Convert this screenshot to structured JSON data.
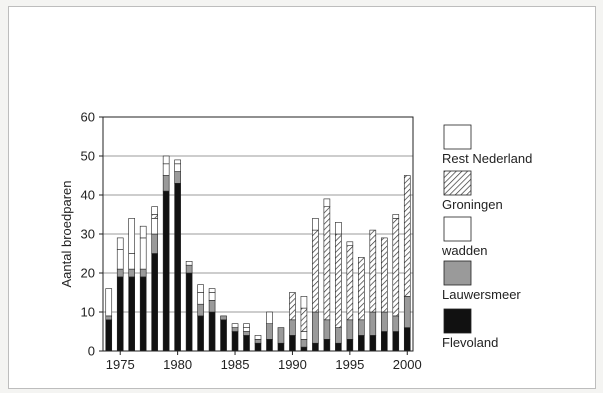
{
  "chart_data": {
    "type": "bar",
    "stacked": true,
    "title": "",
    "xlabel": "",
    "ylabel": "Aantal broedparen",
    "xlim": [
      1975,
      2000
    ],
    "ylim": [
      0,
      60
    ],
    "yticks": [
      0,
      10,
      20,
      30,
      40,
      50,
      60
    ],
    "xticks": [
      1975,
      1980,
      1985,
      1990,
      1995,
      2000
    ],
    "grid": "horizontal",
    "legend_position": "right",
    "years": [
      1974,
      1975,
      1976,
      1977,
      1978,
      1979,
      1980,
      1981,
      1982,
      1983,
      1984,
      1985,
      1986,
      1987,
      1988,
      1989,
      1990,
      1991,
      1992,
      1993,
      1994,
      1995,
      1996,
      1997,
      1998,
      1999,
      2000
    ],
    "series": [
      {
        "name": "Flevoland",
        "pattern": "black",
        "values": [
          8,
          19,
          19,
          19,
          25,
          41,
          43,
          20,
          9,
          10,
          8,
          5,
          4,
          2,
          3,
          2,
          4,
          1,
          2,
          3,
          2,
          3,
          4,
          4,
          5,
          5,
          6
        ]
      },
      {
        "name": "Lauwersmeer",
        "pattern": "gray",
        "values": [
          1,
          2,
          2,
          2,
          5,
          4,
          3,
          2,
          3,
          3,
          1,
          1,
          1,
          1,
          4,
          4,
          4,
          2,
          8,
          5,
          4,
          5,
          4,
          6,
          5,
          4,
          8
        ]
      },
      {
        "name": "wadden",
        "pattern": "white",
        "values": [
          7,
          5,
          4,
          8,
          4,
          3,
          2,
          1,
          3,
          2,
          0,
          0,
          1,
          0,
          0,
          0,
          0,
          2,
          0,
          0,
          0,
          0,
          0,
          0,
          0,
          0,
          0
        ]
      },
      {
        "name": "Groningen",
        "pattern": "hatched",
        "values": [
          0,
          0,
          0,
          0,
          1,
          0,
          0,
          0,
          0,
          0,
          0,
          0,
          0,
          0,
          0,
          0,
          7,
          6,
          21,
          29,
          24,
          19,
          16,
          21,
          19,
          25,
          31
        ]
      },
      {
        "name": "Rest Nederland",
        "pattern": "white",
        "values": [
          0,
          3,
          9,
          3,
          2,
          2,
          1,
          0,
          2,
          1,
          0,
          1,
          1,
          1,
          3,
          0,
          0,
          3,
          3,
          2,
          3,
          1,
          0,
          0,
          0,
          1,
          0
        ]
      }
    ],
    "legend_order": [
      "Rest Nederland",
      "Groningen",
      "wadden",
      "Lauwersmeer",
      "Flevoland"
    ]
  },
  "colors": {
    "black": "#111111",
    "gray": "#9a9a9a",
    "white": "#ffffff",
    "hatch": "#333333",
    "grid": "#7a7a7a"
  }
}
